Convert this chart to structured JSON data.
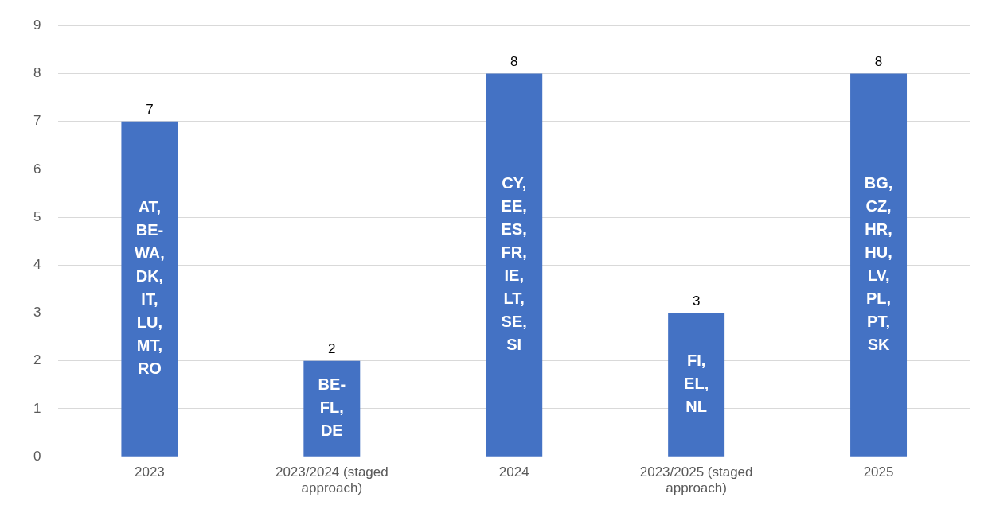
{
  "chart_data": {
    "type": "bar",
    "categories": [
      "2023",
      "2023/2024 (staged approach)",
      "2024",
      "2023/2025 (staged approach)",
      "2025"
    ],
    "values": [
      7,
      2,
      8,
      3,
      8
    ],
    "color": "#4472c4",
    "ylim": [
      0,
      9
    ],
    "yticks": [
      0,
      1,
      2,
      3,
      4,
      5,
      6,
      7,
      8,
      9
    ],
    "grid": "y",
    "data_labels": true,
    "annotations": [
      "AT, BE-WA, DK, IT, LU, MT, RO",
      "BE-FL, DE",
      "CY, EE, ES, FR, IE, LT, SE, SI",
      "FI, EL, NL",
      "BG, CZ, HR, HU, LV, PL, PT, SK"
    ]
  }
}
